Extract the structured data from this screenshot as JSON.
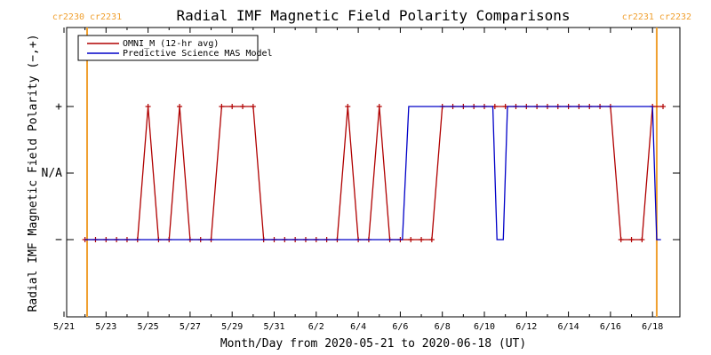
{
  "chart_data": {
    "type": "line",
    "title": "Radial IMF Magnetic Field Polarity Comparisons",
    "xlabel": "Month/Day from 2020-05-21 to 2020-06-18 (UT)",
    "ylabel": "Radial IMF Magnetic Field Polarity (−,+)",
    "xlim": [
      0,
      28.5
    ],
    "ylim": [
      -2.1,
      2.1
    ],
    "x_ticks": [
      {
        "x": 0,
        "label": "5/21"
      },
      {
        "x": 2,
        "label": "5/23"
      },
      {
        "x": 4,
        "label": "5/25"
      },
      {
        "x": 6,
        "label": "5/27"
      },
      {
        "x": 8,
        "label": "5/29"
      },
      {
        "x": 10,
        "label": "5/31"
      },
      {
        "x": 12,
        "label": "6/2"
      },
      {
        "x": 14,
        "label": "6/4"
      },
      {
        "x": 16,
        "label": "6/6"
      },
      {
        "x": 18,
        "label": "6/8"
      },
      {
        "x": 20,
        "label": "6/10"
      },
      {
        "x": 22,
        "label": "6/12"
      },
      {
        "x": 24,
        "label": "6/14"
      },
      {
        "x": 26,
        "label": "6/16"
      },
      {
        "x": 28,
        "label": "6/18"
      }
    ],
    "y_ticks": [
      {
        "y": 1,
        "label": "+"
      },
      {
        "y": 0,
        "label": "N/A"
      },
      {
        "y": -1,
        "label": "−"
      }
    ],
    "series": [
      {
        "name": "OMNI_M (12-hr avg)",
        "color": "#b00000",
        "marker": "plus",
        "x": [
          1,
          1.5,
          2,
          2.5,
          3,
          3.5,
          4,
          4.5,
          5,
          5.5,
          6,
          6.5,
          7,
          7.5,
          8,
          8.5,
          9,
          9.5,
          10,
          10.5,
          11,
          11.5,
          12,
          12.5,
          13,
          13.5,
          14,
          14.5,
          15,
          15.5,
          16,
          16.5,
          17,
          17.5,
          18,
          18.5,
          19,
          19.5,
          20,
          20.5,
          21,
          21.5,
          22,
          22.5,
          23,
          23.5,
          24,
          24.5,
          25,
          25.5,
          26,
          26.5,
          27,
          27.5,
          28,
          28.5
        ],
        "values": [
          -1,
          -1,
          -1,
          -1,
          -1,
          -1,
          1,
          -1,
          -1,
          1,
          -1,
          -1,
          -1,
          1,
          1,
          1,
          1,
          -1,
          -1,
          -1,
          -1,
          -1,
          -1,
          -1,
          -1,
          1,
          -1,
          -1,
          1,
          -1,
          -1,
          -1,
          -1,
          -1,
          1,
          1,
          1,
          1,
          1,
          1,
          1,
          1,
          1,
          1,
          1,
          1,
          1,
          1,
          1,
          1,
          1,
          -1,
          -1,
          -1,
          1,
          1
        ]
      },
      {
        "name": "Predictive Science MAS Model",
        "color": "#0000c8",
        "marker": "none",
        "x": [
          1,
          16.1,
          16.4,
          20.4,
          20.6,
          20.9,
          21.1,
          28.0,
          28.2,
          28.4
        ],
        "values": [
          -1,
          -1,
          1,
          1,
          -1,
          -1,
          1,
          1,
          -1,
          -1
        ]
      }
    ],
    "carrington_rotations": [
      {
        "x": 1.1,
        "labels": [
          "cr2230",
          "cr2231"
        ],
        "color": "#f0a030"
      },
      {
        "x": 28.2,
        "labels": [
          "cr2231",
          "cr2232"
        ],
        "color": "#f0a030"
      }
    ],
    "legend": "top-left",
    "grid": false
  }
}
